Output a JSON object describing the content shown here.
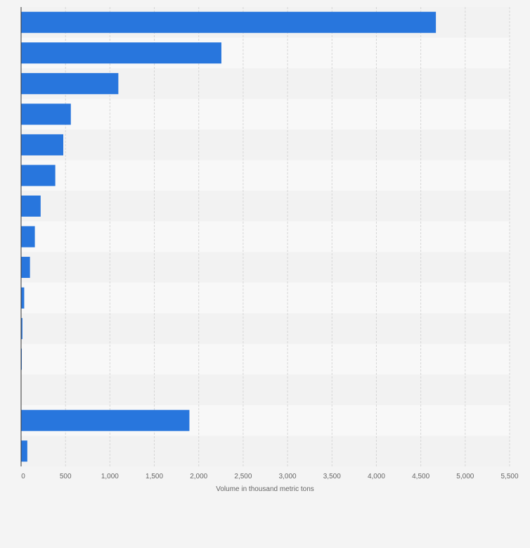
{
  "chart_data": {
    "type": "bar",
    "orientation": "horizontal",
    "title": "",
    "xlabel": "Volume in thousand metric tons",
    "ylabel": "",
    "categories": [
      "",
      "",
      "",
      "",
      "",
      "",
      "",
      "",
      "",
      "",
      "",
      "",
      "",
      "",
      ""
    ],
    "values": [
      4670,
      2255,
      1095,
      560,
      475,
      385,
      220,
      155,
      100,
      35,
      15,
      8,
      0,
      1895,
      70
    ],
    "xlim": [
      0,
      5500
    ],
    "xticks": [
      0,
      500,
      1000,
      1500,
      2000,
      2500,
      3000,
      3500,
      4000,
      4500,
      5000,
      5500
    ],
    "xtick_labels": [
      "0",
      "500",
      "1,000",
      "1,500",
      "2,000",
      "2,500",
      "3,000",
      "3,500",
      "4,000",
      "4,500",
      "5,000",
      "5,500"
    ],
    "grid": true,
    "legend": "none",
    "bar_color": "#2876dd",
    "band_colors": [
      "#f2f2f2",
      "#f8f8f8"
    ]
  }
}
